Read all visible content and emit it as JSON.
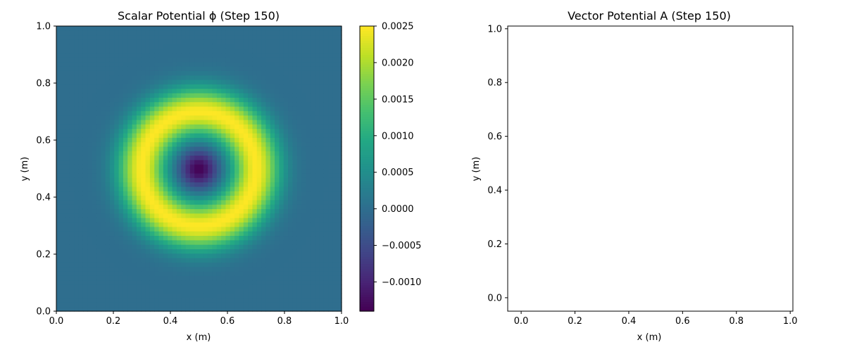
{
  "chart_data": [
    {
      "type": "heatmap",
      "title": "Scalar Potential ϕ (Step 150)",
      "xlabel": "x (m)",
      "ylabel": "y (m)",
      "xlim": [
        0.0,
        1.0
      ],
      "ylim": [
        0.0,
        1.0
      ],
      "xticks": [
        "0.0",
        "0.2",
        "0.4",
        "0.6",
        "0.8",
        "1.0"
      ],
      "yticks": [
        "0.0",
        "0.2",
        "0.4",
        "0.6",
        "0.8",
        "1.0"
      ],
      "grid_size": 64,
      "field": {
        "description_shape": "radial ring",
        "center": [
          0.5,
          0.5
        ],
        "center_value": -0.0014,
        "ring_radius": 0.2,
        "ring_peak_value": 0.0025,
        "background_value": 0.0
      },
      "colorbar": {
        "colormap": "viridis",
        "vmin": -0.0014,
        "vmax": 0.0025,
        "ticks": [
          {
            "value": 0.0025,
            "label": "0.0025"
          },
          {
            "value": 0.002,
            "label": "0.0020"
          },
          {
            "value": 0.0015,
            "label": "0.0015"
          },
          {
            "value": 0.001,
            "label": "0.0010"
          },
          {
            "value": 0.0005,
            "label": "0.0005"
          },
          {
            "value": 0.0,
            "label": "0.0000"
          },
          {
            "value": -0.0005,
            "label": "−0.0005"
          },
          {
            "value": -0.001,
            "label": "−0.0010"
          }
        ]
      }
    },
    {
      "type": "scatter",
      "title": "Vector Potential A (Step 150)",
      "xlabel": "x (m)",
      "ylabel": "y (m)",
      "xlim": [
        -0.05,
        1.01
      ],
      "ylim": [
        -0.05,
        1.01
      ],
      "xticks": [
        "0.0",
        "0.2",
        "0.4",
        "0.6",
        "0.8",
        "1.0"
      ],
      "yticks": [
        "0.0",
        "0.2",
        "0.4",
        "0.6",
        "0.8",
        "1.0"
      ],
      "series": []
    }
  ]
}
